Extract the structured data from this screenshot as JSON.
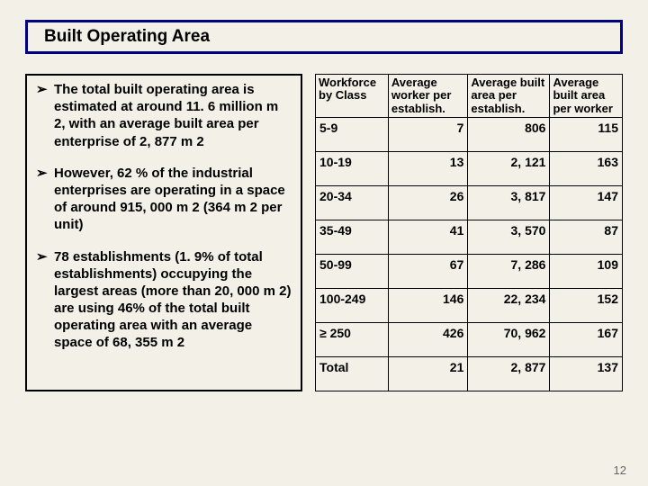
{
  "title": "Built  Operating Area",
  "bullets": [
    "The total built operating area is estimated at around 11. 6 million m 2, with an average built area per enterprise of 2, 877 m 2",
    "However, 62 % of the industrial enterprises are operating in a space of around 915, 000 m 2 (364 m 2 per unit)",
    "78 establishments (1. 9% of total establishments) occupying the largest areas (more than 20, 000 m 2) are using 46% of the total built operating area with an average space of 68, 355 m 2"
  ],
  "table": {
    "headers": [
      "Workforce by Class",
      "Average worker per establish.",
      "Average built area per establish.",
      "Average built area per worker"
    ],
    "rows": [
      [
        "5-9",
        "7",
        "806",
        "115"
      ],
      [
        "10-19",
        "13",
        "2, 121",
        "163"
      ],
      [
        "20-34",
        "26",
        "3, 817",
        "147"
      ],
      [
        "35-49",
        "41",
        "3, 570",
        "87"
      ],
      [
        "50-99",
        "67",
        "7, 286",
        "109"
      ],
      [
        "100-249",
        "146",
        "22, 234",
        "152"
      ],
      [
        "≥ 250",
        "426",
        "70, 962",
        "167"
      ],
      [
        "Total",
        "21",
        "2, 877",
        "137"
      ]
    ]
  },
  "pageNumber": "12",
  "colors": {
    "background": "#f3f0e8",
    "titleBorder": "#000080",
    "tableBorder": "#000000"
  }
}
